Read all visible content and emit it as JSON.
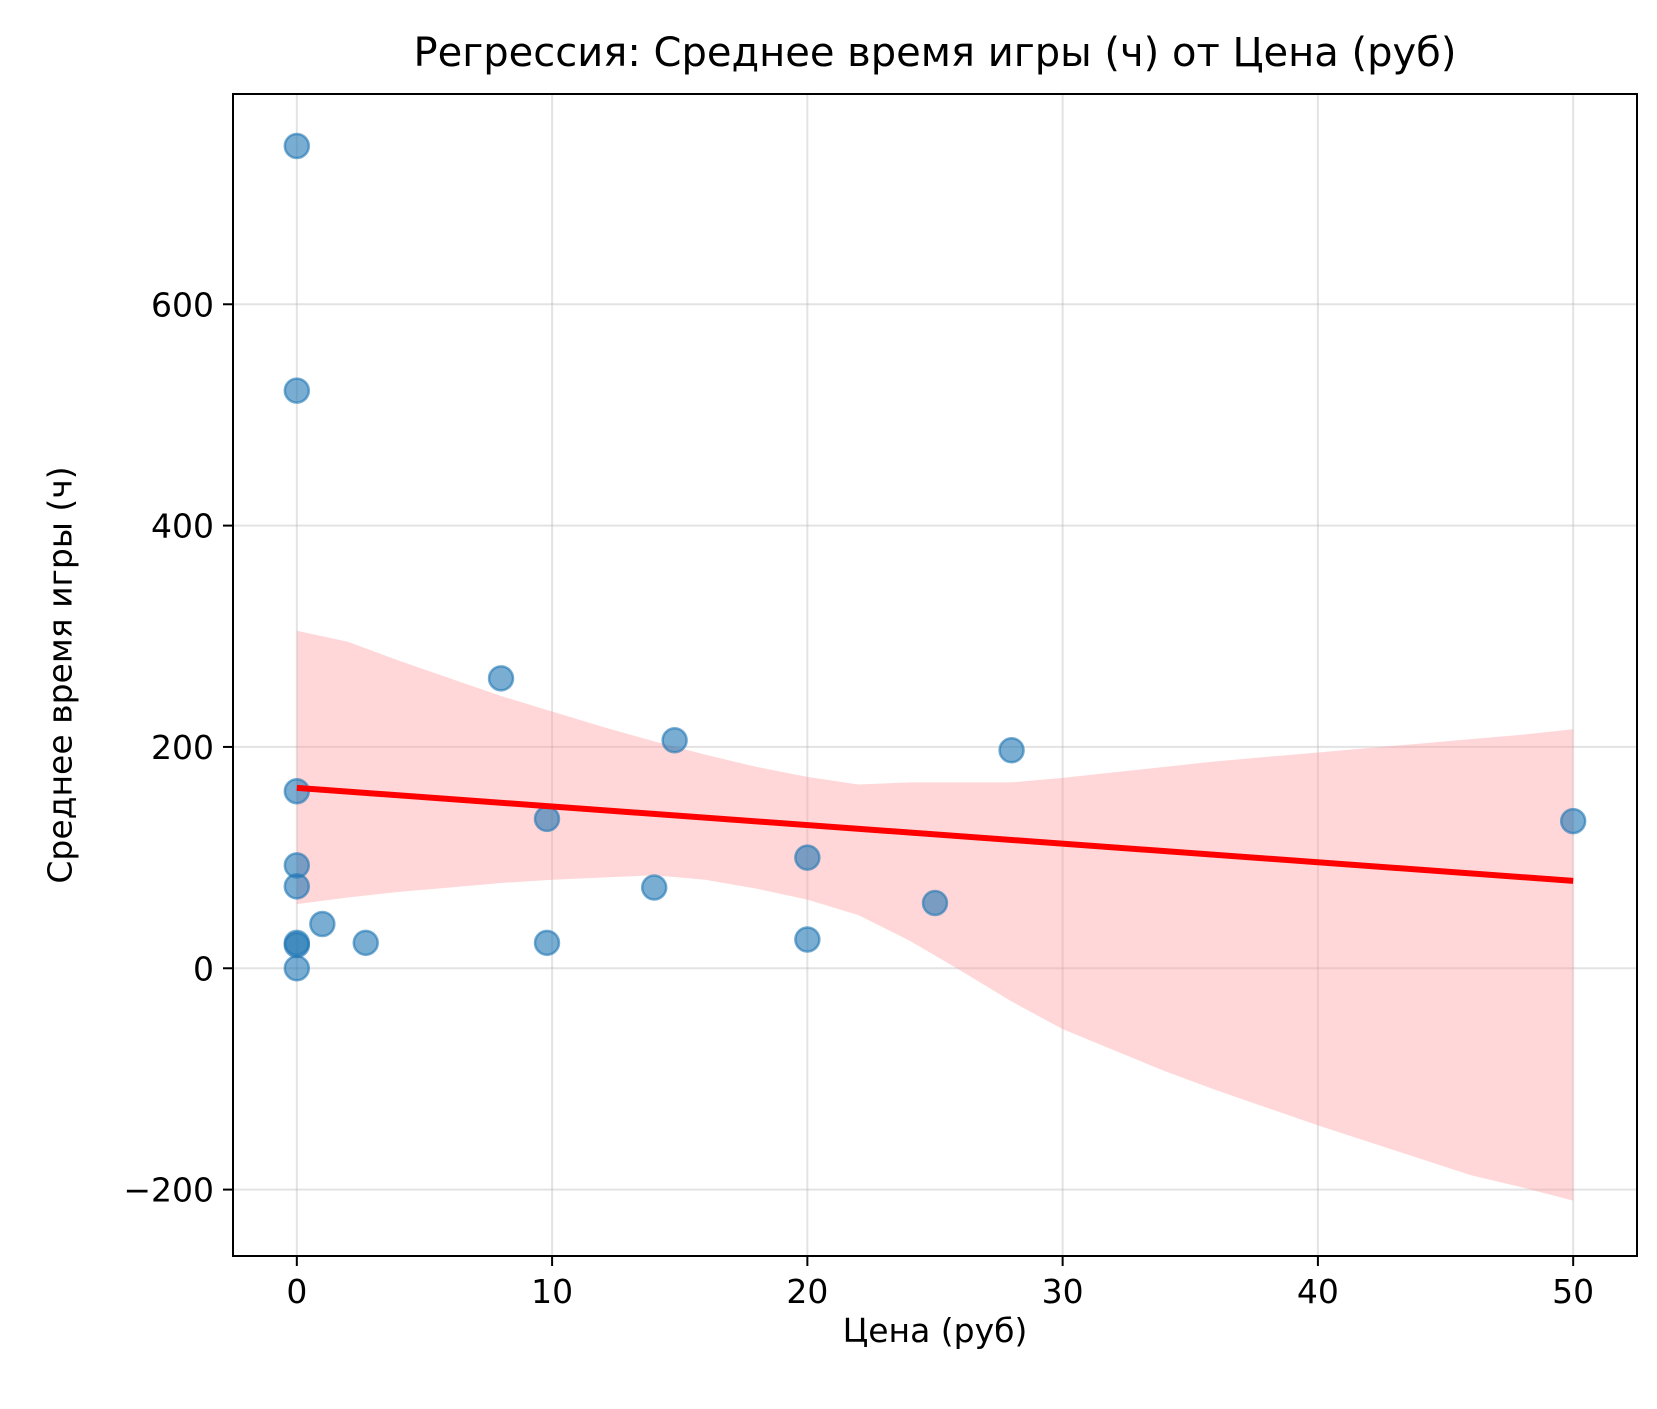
{
  "chart_data": {
    "type": "scatter",
    "title": "Регрессия: Среднее время игры (ч) от Цена (руб)",
    "xlabel": "Цена (руб)",
    "ylabel": "Среднее время игры (ч)",
    "xlim": [
      -2.5,
      52.5
    ],
    "ylim": [
      -260,
      790
    ],
    "xticks": [
      0,
      10,
      20,
      30,
      40,
      50
    ],
    "xtick_labels": [
      "0",
      "10",
      "20",
      "30",
      "40",
      "50"
    ],
    "yticks": [
      -200,
      0,
      200,
      400,
      600
    ],
    "ytick_labels": [
      "−200",
      "0",
      "200",
      "400",
      "600"
    ],
    "grid": true,
    "colors": {
      "points": "#1f77b4",
      "line": "#ff0000",
      "band": "#ff9a9e"
    },
    "points": [
      {
        "x": 0,
        "y": 743
      },
      {
        "x": 0,
        "y": 522
      },
      {
        "x": 0,
        "y": 160
      },
      {
        "x": 0,
        "y": 93
      },
      {
        "x": 0,
        "y": 74
      },
      {
        "x": 0,
        "y": 23
      },
      {
        "x": 0,
        "y": 21
      },
      {
        "x": 0,
        "y": 0
      },
      {
        "x": 1,
        "y": 40
      },
      {
        "x": 2.7,
        "y": 23
      },
      {
        "x": 8,
        "y": 262
      },
      {
        "x": 9.8,
        "y": 135
      },
      {
        "x": 9.8,
        "y": 23
      },
      {
        "x": 14,
        "y": 73
      },
      {
        "x": 14.8,
        "y": 206
      },
      {
        "x": 20,
        "y": 100
      },
      {
        "x": 20,
        "y": 26
      },
      {
        "x": 25,
        "y": 59
      },
      {
        "x": 28,
        "y": 197
      },
      {
        "x": 50,
        "y": 133
      }
    ],
    "regression_line": {
      "x": [
        0,
        50
      ],
      "y": [
        163,
        79
      ]
    },
    "confidence_band": {
      "x": [
        0,
        2,
        4,
        6,
        8,
        10,
        12,
        14,
        16,
        18,
        20,
        22,
        24,
        26,
        28,
        30,
        32,
        34,
        36,
        38,
        40,
        42,
        44,
        46,
        48,
        50
      ],
      "upper": [
        305,
        295,
        278,
        262,
        246,
        232,
        218,
        205,
        193,
        182,
        173,
        166,
        168,
        168,
        168,
        172,
        177,
        182,
        187,
        191,
        195,
        199,
        203,
        207,
        211,
        216
      ],
      "lower": [
        58,
        64,
        69,
        73,
        77,
        80,
        82,
        84,
        80,
        72,
        62,
        48,
        25,
        -2,
        -30,
        -55,
        -74,
        -93,
        -110,
        -126,
        -142,
        -157,
        -172,
        -187,
        -198,
        -210
      ]
    }
  }
}
